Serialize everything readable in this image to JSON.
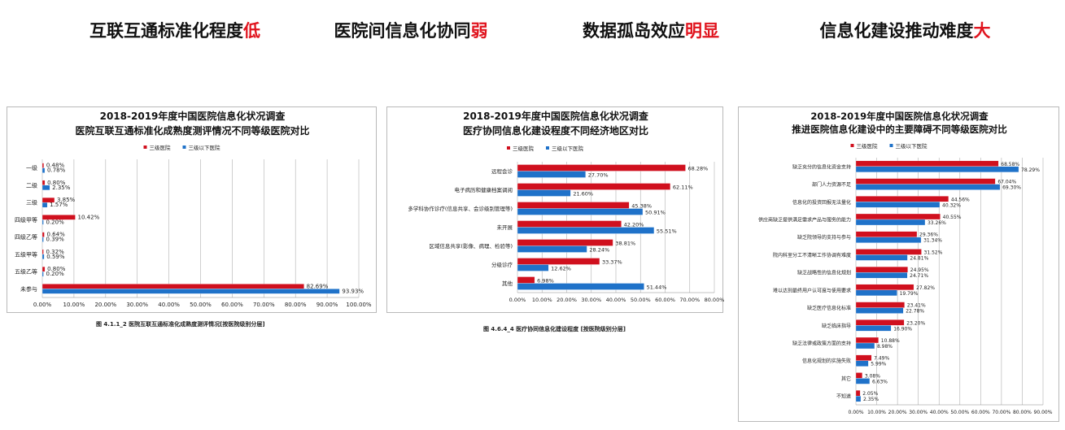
{
  "headlines": [
    {
      "text": "互联互通标准化程度",
      "highlight": "低"
    },
    {
      "text": "医院间信息化协同",
      "highlight": "弱"
    },
    {
      "text": "数据孤岛效应",
      "highlight": "明显"
    },
    {
      "text": "信息化建设推动难度",
      "highlight": "大"
    }
  ],
  "colors": {
    "series_a": "#d0101e",
    "series_b": "#1f72c9",
    "highlight": "#e0141e",
    "grid": "#b0b0b0"
  },
  "captions": {
    "chart1": "图 4.1.1_2  医院互联互通标准化成熟度测评情况[按医院级别分层]",
    "chart2": "图 4.6.4_4 医疗协同信息化建设程度 [按医院级别分层]"
  },
  "chart_data": [
    {
      "type": "bar",
      "orientation": "horizontal",
      "title": "2018-2019年度中国医院信息化状况调查",
      "subtitle": "医院互联互通标准化成熟度测评情况不同等级医院对比",
      "categories": [
        "一级",
        "二级",
        "三级",
        "四级甲等",
        "四级乙等",
        "五级甲等",
        "五级乙等",
        "未参与"
      ],
      "series": [
        {
          "name": "三级医院",
          "values": [
            0.48,
            0.8,
            3.85,
            10.42,
            0.64,
            0.32,
            0.8,
            82.69
          ],
          "labels": [
            "0.48%",
            "0.80%",
            "3.85%",
            "10.42%",
            "0.64%",
            "0.32%",
            "0.80%",
            "82.69%"
          ]
        },
        {
          "name": "三级以下医院",
          "values": [
            0.78,
            2.35,
            1.57,
            0.2,
            0.39,
            0.59,
            0.2,
            93.93
          ],
          "labels": [
            "0.78%",
            "2.35%",
            "1.57%",
            "0.20%",
            "0.39%",
            "0.59%",
            "0.20%",
            "93.93%"
          ]
        }
      ],
      "xlim": [
        0,
        100
      ],
      "ticks": [
        "0.00%",
        "10.00%",
        "20.00%",
        "30.00%",
        "40.00%",
        "50.00%",
        "60.00%",
        "70.00%",
        "80.00%",
        "90.00%",
        "100.00%"
      ],
      "legend": "top-center",
      "grid": true
    },
    {
      "type": "bar",
      "orientation": "horizontal",
      "title": "2018-2019年度中国医院信息化状况调查",
      "subtitle": "医疗协同信息化建设程度不同经济地区对比",
      "categories": [
        "远程会诊",
        "电子病历和健康档案调阅",
        "多学科协作诊疗(信息共享、会诊级别管理等)",
        "未开展",
        "区域信息共享(影像、病理、检验等)",
        "分级诊疗",
        "其他"
      ],
      "series": [
        {
          "name": "三级医院",
          "values": [
            68.28,
            62.11,
            45.38,
            42.2,
            38.81,
            33.37,
            6.98
          ],
          "labels": [
            "68.28%",
            "62.11%",
            "45.38%",
            "42.20%",
            "38.81%",
            "33.37%",
            "6.98%"
          ]
        },
        {
          "name": "三级以下医院",
          "values": [
            27.7,
            21.6,
            50.91,
            55.51,
            28.24,
            12.62,
            51.44
          ],
          "labels": [
            "27.70%",
            "21.60%",
            "50.91%",
            "55.51%",
            "28.24%",
            "12.62%",
            "51.44%"
          ]
        }
      ],
      "xlim": [
        0,
        80
      ],
      "ticks": [
        "0.00%",
        "10.00%",
        "20.00%",
        "30.00%",
        "40.00%",
        "50.00%",
        "60.00%",
        "70.00%",
        "80.00%"
      ],
      "legend": "top-center",
      "grid": true
    },
    {
      "type": "bar",
      "orientation": "horizontal",
      "title": "2018-2019年度中国医院信息化状况调查",
      "subtitle": "推进医院信息化建设中的主要障碍不同等级医院对比",
      "categories": [
        "缺乏充分的信息化资金支持",
        "部门人力资源不足",
        "信息化的投资回报无法量化",
        "供应商缺乏提供满足需求产品与服务的能力",
        "缺乏院领导的支持与参与",
        "院内科室分工不清晰工作协调有难度",
        "缺乏战略性的信息化规划",
        "难以达到最终用户认可度与使用要求",
        "缺乏医疗信息化标准",
        "缺乏临床指导",
        "缺乏法律或政策方面的支持",
        "信息化规划的实施失败",
        "其它",
        "不知道"
      ],
      "series": [
        {
          "name": "三级医院",
          "values": [
            68.58,
            67.04,
            44.56,
            40.55,
            29.36,
            31.52,
            24.95,
            27.82,
            23.41,
            23.2,
            10.88,
            7.49,
            3.08,
            2.05
          ],
          "labels": [
            "68.58%",
            "67.04%",
            "44.56%",
            "40.55%",
            "29.36%",
            "31.52%",
            "24.95%",
            "27.82%",
            "23.41%",
            "23.20%",
            "10.88%",
            "7.49%",
            "3.08%",
            "2.05%"
          ]
        },
        {
          "name": "三级以下医院",
          "values": [
            78.29,
            69.3,
            40.32,
            33.26,
            31.34,
            24.81,
            24.71,
            19.79,
            22.78,
            16.9,
            8.98,
            5.99,
            6.63,
            2.35
          ],
          "labels": [
            "78.29%",
            "69.30%",
            "40.32%",
            "33.26%",
            "31.34%",
            "24.81%",
            "24.71%",
            "19.79%",
            "22.78%",
            "16.90%",
            "8.98%",
            "5.99%",
            "6.63%",
            "2.35%"
          ]
        }
      ],
      "xlim": [
        0,
        90
      ],
      "ticks": [
        "0.00%",
        "10.00%",
        "20.00%",
        "30.00%",
        "40.00%",
        "50.00%",
        "60.00%",
        "70.00%",
        "80.00%",
        "90.00%"
      ],
      "legend": "top-center",
      "grid": true
    }
  ]
}
